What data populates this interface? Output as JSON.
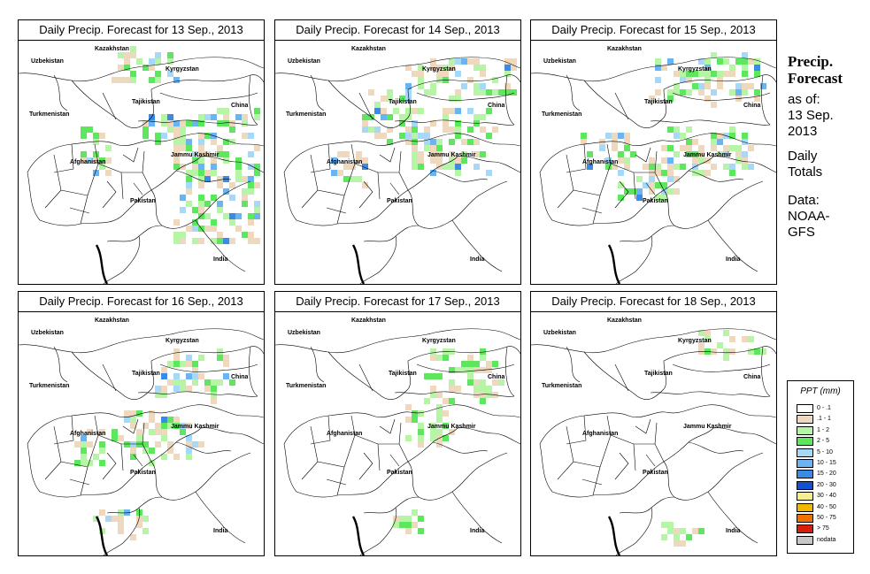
{
  "panels": [
    {
      "title": "Daily Precip. Forecast for  13 Sep., 2013"
    },
    {
      "title": "Daily Precip. Forecast for  14 Sep., 2013"
    },
    {
      "title": "Daily Precip. Forecast for  15 Sep., 2013"
    },
    {
      "title": "Daily Precip. Forecast for  16 Sep., 2013"
    },
    {
      "title": "Daily Precip. Forecast for  17 Sep., 2013"
    },
    {
      "title": "Daily Precip. Forecast for  18 Sep., 2013"
    }
  ],
  "map_labels": {
    "kazakhstan": "Kazakhstan",
    "uzbekistan": "Uzbekistan",
    "kyrgyzstan": "Kyrgyzstan",
    "tajikistan": "Tajikistan",
    "turkmenistan": "Turkmenistan",
    "china": "China",
    "afghanistan": "Afghanistan",
    "jammu_kashmir": "Jammu Kashmir",
    "pakistan": "Pakistan",
    "india": "India"
  },
  "side_panel": {
    "heading_line1": "Precip.",
    "heading_line2": "Forecast",
    "asof_line1": "as of:",
    "asof_line2": "13 Sep.",
    "asof_line3": "2013",
    "totals_line1": "Daily",
    "totals_line2": "Totals",
    "data_line1": "Data:",
    "data_line2": "NOAA-",
    "data_line3": "GFS"
  },
  "legend": {
    "title": "PPT (mm)",
    "items": [
      {
        "label": "0 - .1",
        "color": "#ffffff"
      },
      {
        "label": ".1 - 1",
        "color": "#eed9bf"
      },
      {
        "label": "1 - 2",
        "color": "#b7f5a6"
      },
      {
        "label": "2 - 5",
        "color": "#5ee65e"
      },
      {
        "label": "5 - 10",
        "color": "#a8d8f8"
      },
      {
        "label": "10 - 15",
        "color": "#6ab4f2"
      },
      {
        "label": "15 - 20",
        "color": "#3a8ae6"
      },
      {
        "label": "20 - 30",
        "color": "#1450d0"
      },
      {
        "label": "30 - 40",
        "color": "#f5f08c"
      },
      {
        "label": "40 - 50",
        "color": "#f2b800"
      },
      {
        "label": "50 - 75",
        "color": "#f07000"
      },
      {
        "label": "> 75",
        "color": "#d81e0a"
      },
      {
        "label": "nodata",
        "color": "#c8c8c8"
      }
    ]
  }
}
